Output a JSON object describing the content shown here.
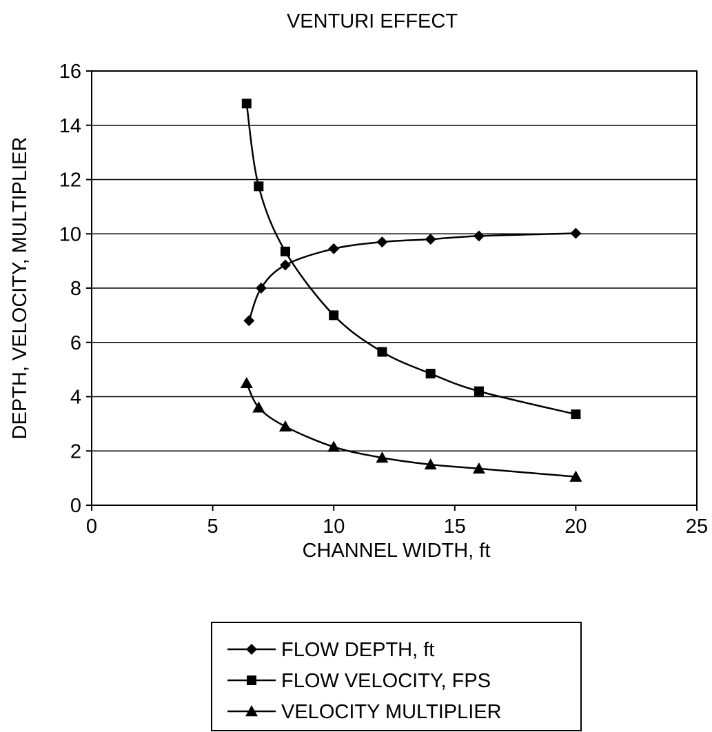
{
  "chart_data": {
    "type": "line",
    "title": "VENTURI EFFECT",
    "xlabel": "CHANNEL WIDTH, ft",
    "ylabel": "DEPTH, VELOCITY, MULTIPLIER",
    "xlim": [
      0,
      25
    ],
    "ylim": [
      0,
      16
    ],
    "xticks": [
      0,
      5,
      10,
      15,
      20,
      25
    ],
    "yticks": [
      0,
      2,
      4,
      6,
      8,
      10,
      12,
      14,
      16
    ],
    "grid": "horizontal",
    "legend_position": "bottom",
    "series": [
      {
        "name": "FLOW DEPTH, ft",
        "marker": "diamond",
        "x": [
          6.5,
          7,
          8,
          10,
          12,
          14,
          16,
          20
        ],
        "y": [
          6.8,
          8.0,
          8.85,
          9.45,
          9.7,
          9.8,
          9.92,
          10.02
        ]
      },
      {
        "name": "FLOW VELOCITY, FPS",
        "marker": "square",
        "x": [
          6.4,
          6.9,
          8,
          10,
          12,
          14,
          16,
          20
        ],
        "y": [
          14.8,
          11.75,
          9.35,
          7.0,
          5.65,
          4.85,
          4.2,
          3.35
        ]
      },
      {
        "name": "VELOCITY MULTIPLIER",
        "marker": "triangle",
        "x": [
          6.4,
          6.9,
          8,
          10,
          12,
          14,
          16,
          20
        ],
        "y": [
          4.5,
          3.6,
          2.9,
          2.15,
          1.75,
          1.5,
          1.35,
          1.05
        ]
      }
    ]
  }
}
